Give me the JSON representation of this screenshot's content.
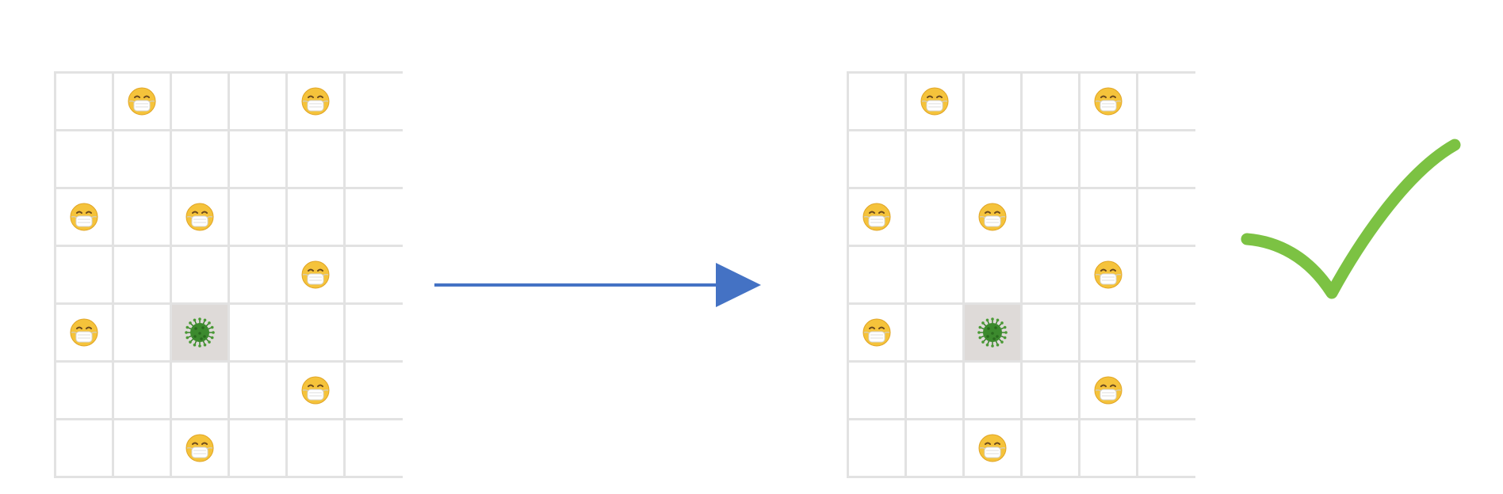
{
  "grid": {
    "rows": 7,
    "cols": 6
  },
  "panels": [
    {
      "id": "before",
      "virus": [
        4,
        2
      ],
      "people": [
        [
          0,
          1
        ],
        [
          0,
          4
        ],
        [
          2,
          0
        ],
        [
          2,
          2
        ],
        [
          3,
          4
        ],
        [
          4,
          0
        ],
        [
          5,
          4
        ],
        [
          6,
          2
        ]
      ]
    },
    {
      "id": "after",
      "virus": [
        4,
        2
      ],
      "people": [
        [
          0,
          1
        ],
        [
          0,
          4
        ],
        [
          2,
          0
        ],
        [
          2,
          2
        ],
        [
          3,
          4
        ],
        [
          4,
          0
        ],
        [
          5,
          4
        ],
        [
          6,
          2
        ]
      ]
    }
  ],
  "icons": {
    "person": "mask-face-icon",
    "virus": "virus-icon",
    "arrow": "arrow-right-icon",
    "result": "checkmark-icon"
  },
  "colors": {
    "grid_line": "#e2e2e2",
    "virus_cell": "#dedad8",
    "arrow": "#4472c4",
    "checkmark": "#7cc243",
    "face": "#f5c33b",
    "mask": "#ffffff",
    "virus": "#3c8a2e"
  }
}
